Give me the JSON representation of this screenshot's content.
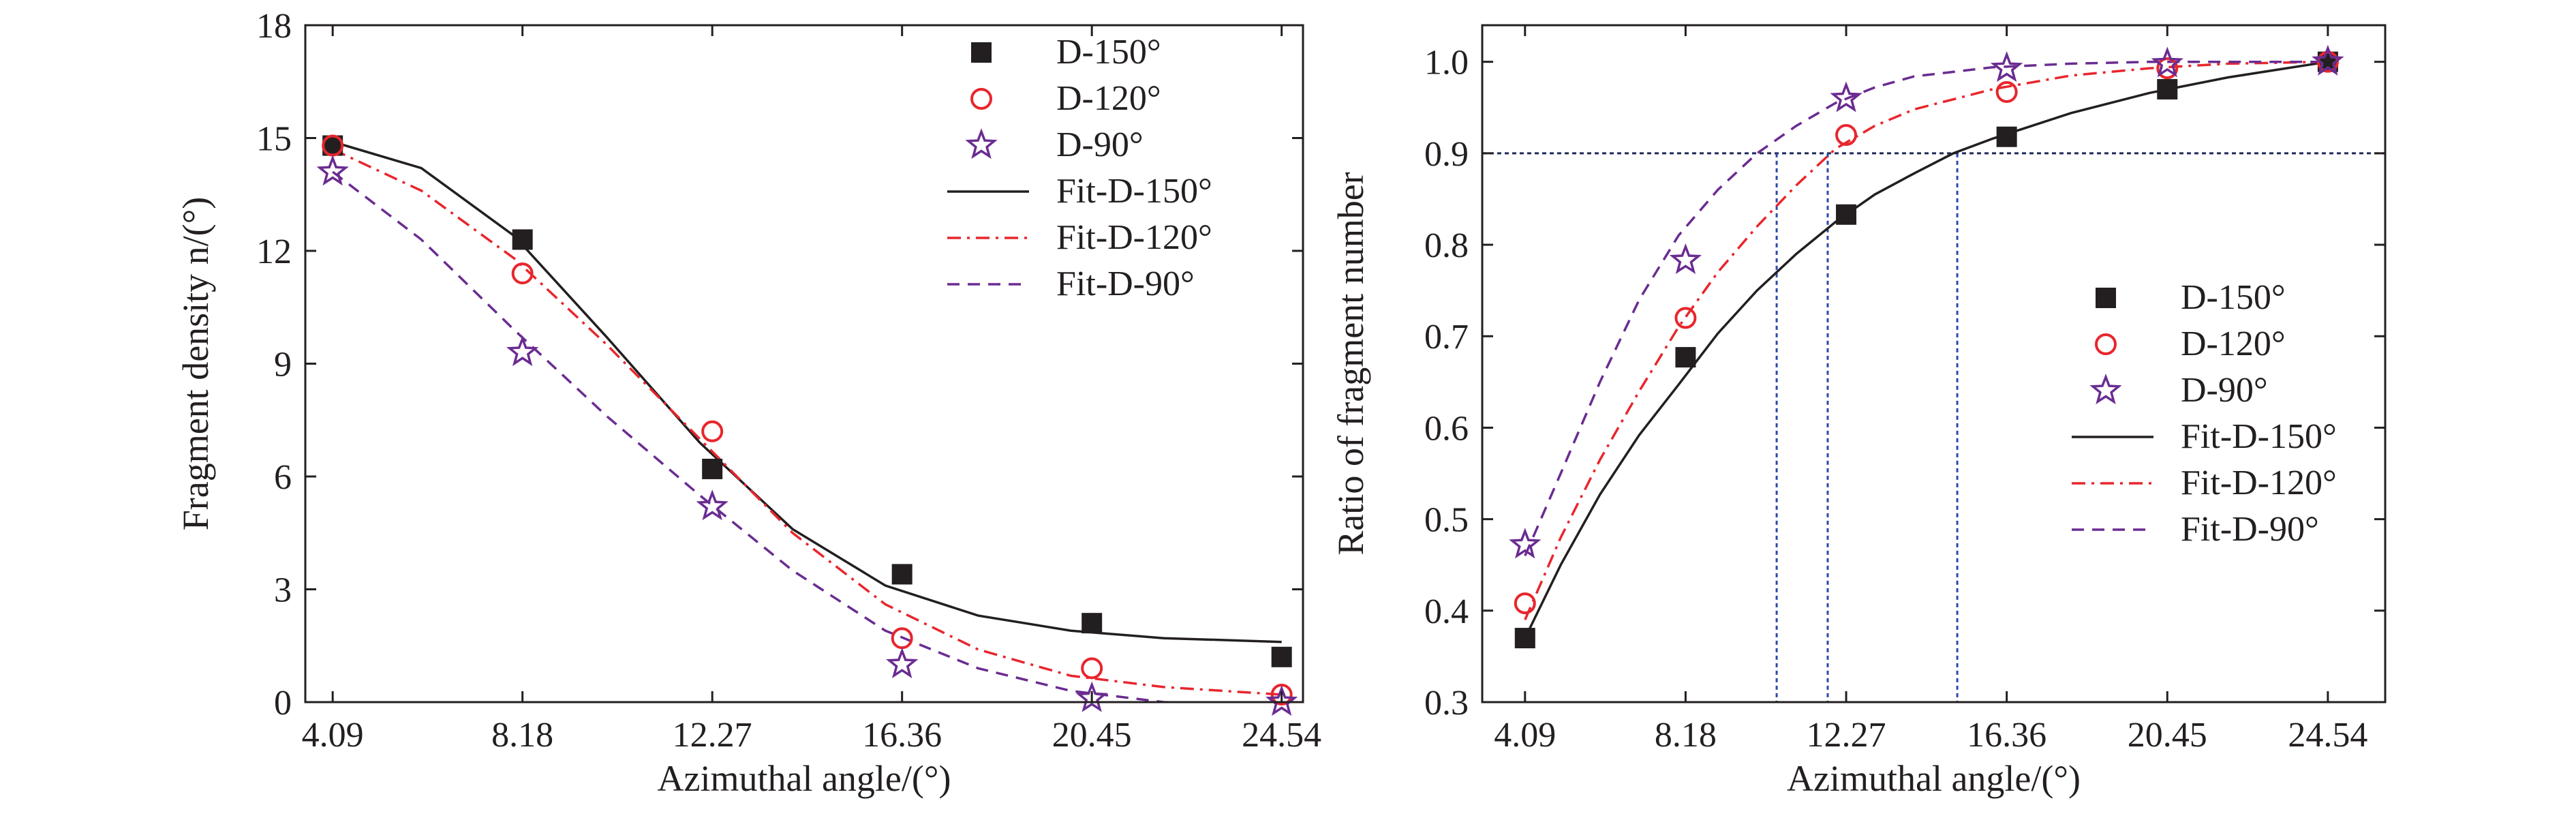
{
  "chart_data": [
    {
      "type": "scatter",
      "xlabel": "Azimuthal angle/(°)",
      "ylabel": "Fragment density n/(°)",
      "xticks": [
        "4.09",
        "8.18",
        "12.27",
        "16.36",
        "20.45",
        "24.54"
      ],
      "xlim": [
        3.5,
        25.0
      ],
      "ylim": [
        0,
        18
      ],
      "yticks": [
        "0",
        "3",
        "6",
        "9",
        "12",
        "15",
        "18"
      ],
      "legend_position": "top-right",
      "series": [
        {
          "name": "D-150°",
          "marker": "square",
          "color": "#231f20",
          "x": [
            4.09,
            8.18,
            12.27,
            16.36,
            20.45,
            24.54
          ],
          "y": [
            14.8,
            12.3,
            6.2,
            3.4,
            2.1,
            1.2
          ]
        },
        {
          "name": "D-120°",
          "marker": "circle",
          "color": "#e8262d",
          "x": [
            4.09,
            8.18,
            12.27,
            16.36,
            20.45,
            24.54
          ],
          "y": [
            14.8,
            11.4,
            7.2,
            1.7,
            0.9,
            0.2
          ]
        },
        {
          "name": "D-90°",
          "marker": "star",
          "color": "#6a2c91",
          "x": [
            4.09,
            8.18,
            12.27,
            16.36,
            20.45,
            24.54
          ],
          "y": [
            14.1,
            9.3,
            5.2,
            1.0,
            0.1,
            0.0
          ]
        }
      ],
      "fits": [
        {
          "name": "Fit-D-150°",
          "style": "solid",
          "color": "#231f20",
          "x": [
            4.09,
            6.0,
            8.0,
            10.0,
            12.0,
            14.0,
            16.0,
            18.0,
            20.0,
            22.0,
            24.54
          ],
          "y": [
            14.9,
            14.2,
            12.4,
            9.7,
            6.9,
            4.6,
            3.1,
            2.3,
            1.9,
            1.7,
            1.6
          ]
        },
        {
          "name": "Fit-D-120°",
          "style": "dashdot",
          "color": "#e8262d",
          "x": [
            4.09,
            6.0,
            8.0,
            10.0,
            12.0,
            14.0,
            16.0,
            18.0,
            20.0,
            22.0,
            24.54
          ],
          "y": [
            14.7,
            13.6,
            11.8,
            9.5,
            7.0,
            4.5,
            2.6,
            1.4,
            0.7,
            0.4,
            0.2
          ]
        },
        {
          "name": "Fit-D-90°",
          "style": "dashed",
          "color": "#6a2c91",
          "x": [
            4.09,
            6.0,
            8.0,
            10.0,
            12.0,
            14.0,
            16.0,
            18.0,
            20.0,
            22.0,
            24.54
          ],
          "y": [
            14.1,
            12.3,
            9.9,
            7.6,
            5.5,
            3.5,
            1.9,
            0.9,
            0.3,
            0.0,
            -0.1
          ]
        }
      ]
    },
    {
      "type": "scatter",
      "xlabel": "Azimuthal angle/(°)",
      "ylabel": "Ratio of fragment number",
      "xticks": [
        "4.09",
        "8.18",
        "12.27",
        "16.36",
        "20.45",
        "24.54"
      ],
      "xlim": [
        3.0,
        26.0
      ],
      "ylim": [
        0.3,
        1.04
      ],
      "yticks": [
        "0.3",
        "0.4",
        "0.5",
        "0.6",
        "0.7",
        "0.8",
        "0.9",
        "1.0"
      ],
      "legend_position": "center-right",
      "reference_line_y": 0.9,
      "reference_drop_x": [
        10.5,
        11.8,
        15.1
      ],
      "series": [
        {
          "name": "D-150°",
          "marker": "square",
          "color": "#231f20",
          "x": [
            4.09,
            8.18,
            12.27,
            16.36,
            20.45,
            24.54
          ],
          "y": [
            0.37,
            0.677,
            0.833,
            0.918,
            0.97,
            1.0
          ]
        },
        {
          "name": "D-120°",
          "marker": "circle",
          "color": "#e8262d",
          "x": [
            4.09,
            8.18,
            12.27,
            16.36,
            20.45,
            24.54
          ],
          "y": [
            0.408,
            0.72,
            0.92,
            0.967,
            0.993,
            1.0
          ]
        },
        {
          "name": "D-90°",
          "marker": "star",
          "color": "#6a2c91",
          "x": [
            4.09,
            8.18,
            12.27,
            16.36,
            20.45,
            24.54
          ],
          "y": [
            0.472,
            0.783,
            0.96,
            0.993,
            0.998,
            1.0
          ]
        }
      ],
      "fits": [
        {
          "name": "Fit-D-150°",
          "style": "solid",
          "color": "#231f20",
          "x": [
            4.09,
            5.0,
            6.0,
            7.0,
            8.0,
            9.0,
            10.0,
            11.0,
            12.0,
            13.0,
            14.0,
            15.0,
            16.0,
            18.0,
            20.0,
            22.0,
            24.54
          ],
          "y": [
            0.37,
            0.45,
            0.527,
            0.592,
            0.647,
            0.703,
            0.75,
            0.79,
            0.825,
            0.855,
            0.878,
            0.9,
            0.916,
            0.944,
            0.966,
            0.983,
            1.0
          ]
        },
        {
          "name": "Fit-D-120°",
          "style": "dashdot",
          "color": "#e8262d",
          "x": [
            4.09,
            5.0,
            6.0,
            7.0,
            8.0,
            9.0,
            10.0,
            11.0,
            12.0,
            13.0,
            14.0,
            16.0,
            18.0,
            20.0,
            22.0,
            24.54
          ],
          "y": [
            0.39,
            0.48,
            0.565,
            0.64,
            0.71,
            0.77,
            0.82,
            0.865,
            0.905,
            0.93,
            0.948,
            0.97,
            0.985,
            0.993,
            0.998,
            1.0
          ]
        },
        {
          "name": "Fit-D-90°",
          "style": "dashed",
          "color": "#6a2c91",
          "x": [
            4.09,
            5.0,
            6.0,
            7.0,
            8.0,
            9.0,
            10.0,
            11.0,
            12.0,
            13.0,
            14.0,
            16.0,
            18.0,
            20.0,
            22.0,
            24.54
          ],
          "y": [
            0.46,
            0.55,
            0.65,
            0.74,
            0.81,
            0.86,
            0.9,
            0.93,
            0.955,
            0.972,
            0.984,
            0.994,
            0.998,
            1.0,
            1.0,
            1.0
          ]
        }
      ]
    }
  ]
}
